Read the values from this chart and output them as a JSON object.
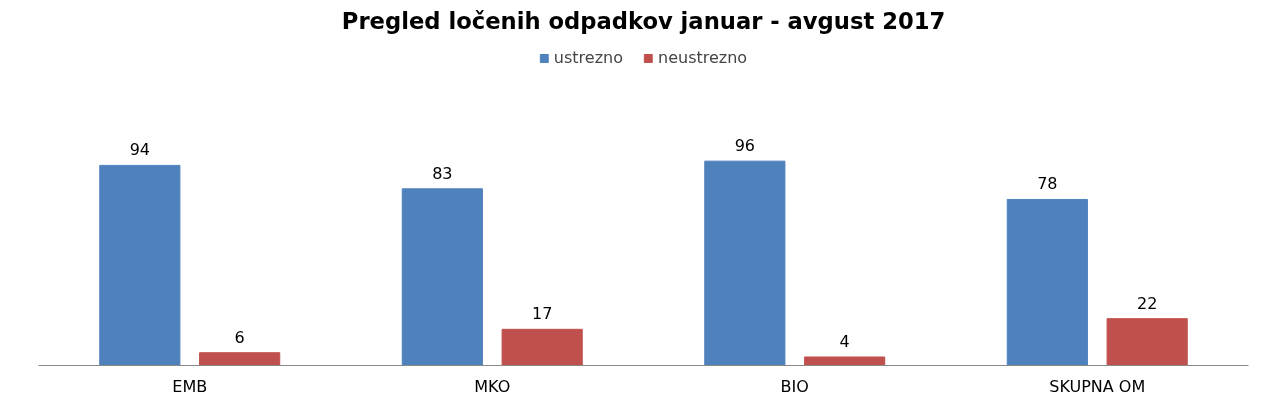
{
  "chart_data": {
    "type": "bar",
    "title": "Pregled ločenih odpadkov januar - avgust 2017",
    "categories": [
      "EMB",
      "MKO",
      "BIO",
      "SKUPNA OM"
    ],
    "series": [
      {
        "name": "ustrezno",
        "color": "#4f81bd",
        "values": [
          94,
          83,
          96,
          78
        ]
      },
      {
        "name": "neustrezno",
        "color": "#c0504d",
        "values": [
          6,
          17,
          4,
          22
        ]
      }
    ],
    "tick_labels": "x",
    "data_labels": true,
    "legend": "top",
    "grid": false
  }
}
